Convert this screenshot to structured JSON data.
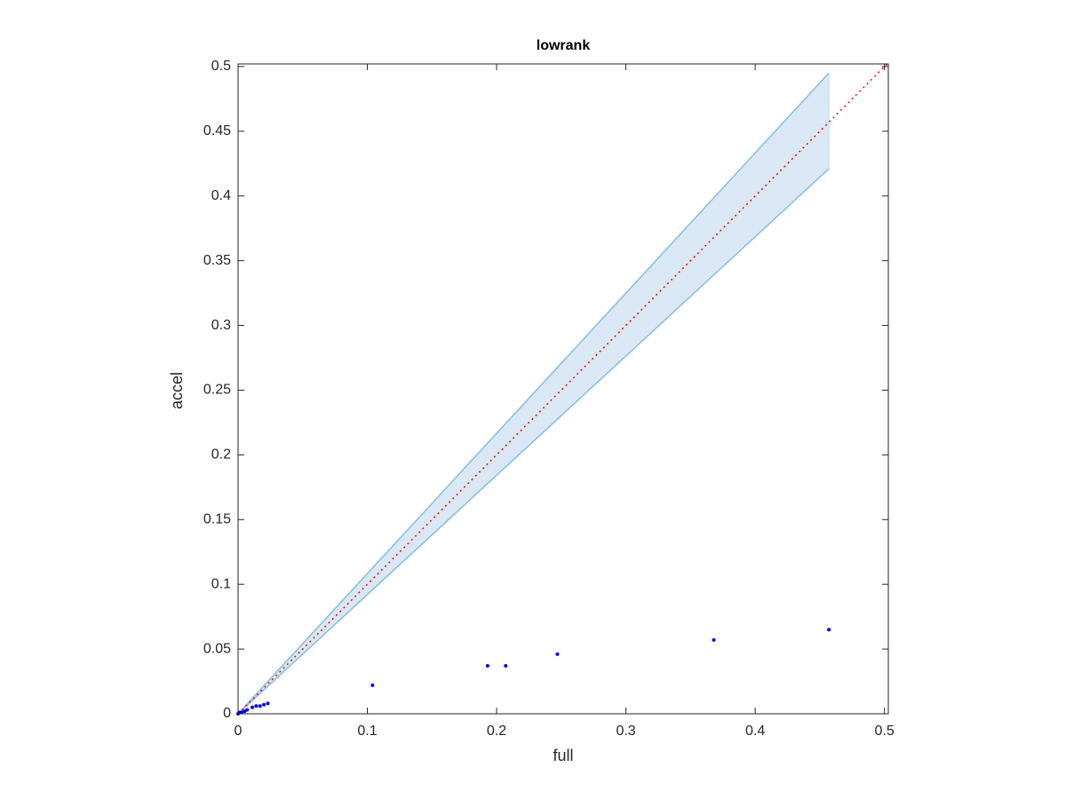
{
  "chart_data": {
    "type": "scatter",
    "title": "lowrank",
    "xlabel": "full",
    "ylabel": "accel",
    "xlim": [
      0,
      0.503
    ],
    "ylim": [
      0,
      0.502
    ],
    "xticks": [
      0,
      0.1,
      0.2,
      0.3,
      0.4,
      0.5
    ],
    "yticks": [
      0,
      0.05,
      0.1,
      0.15,
      0.2,
      0.25,
      0.3,
      0.35,
      0.4,
      0.45,
      0.5
    ],
    "grid": false,
    "band": {
      "x": [
        0,
        0.457
      ],
      "upper": [
        0,
        0.495
      ],
      "lower": [
        0,
        0.421
      ],
      "color": "#86bde0",
      "fill": "#d9e8f4"
    },
    "reference_line": {
      "x": [
        0,
        0.503
      ],
      "y": [
        0,
        0.503
      ],
      "color": "#ff0000"
    },
    "points": {
      "color": "#0000ff",
      "x": [
        0.457,
        0.368,
        0.247,
        0.207,
        0.193,
        0.104,
        0.023,
        0.02,
        0.017,
        0.014,
        0.011,
        0.007,
        0.005,
        0.003,
        0.001,
        0
      ],
      "y": [
        0.065,
        0.057,
        0.046,
        0.037,
        0.037,
        0.022,
        0.008,
        0.007,
        0.006,
        0.006,
        0.005,
        0.003,
        0.002,
        0.001,
        0.001,
        0
      ]
    }
  }
}
